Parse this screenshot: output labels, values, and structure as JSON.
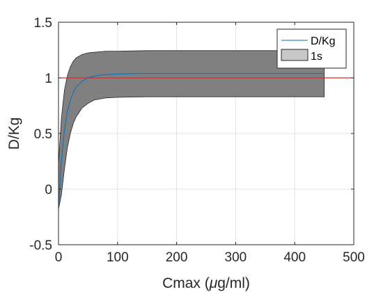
{
  "chart_data": {
    "type": "area",
    "xlabel_prefix": "Cmax (",
    "xlabel_mu": "μ",
    "xlabel_suffix": "g/ml)",
    "ylabel": "D/Kg",
    "xlim": [
      0,
      500
    ],
    "ylim": [
      -0.5,
      1.5
    ],
    "xticks": [
      0,
      100,
      200,
      300,
      400,
      500
    ],
    "yticks": [
      -0.5,
      0,
      0.5,
      1,
      1.5
    ],
    "xtick_labels": [
      "0",
      "100",
      "200",
      "300",
      "400",
      "500"
    ],
    "ytick_labels": [
      "-0.5",
      "0",
      "0.5",
      "1",
      "1.5"
    ],
    "grid": true,
    "legend_location": "top-right",
    "reference_line": {
      "y": 1,
      "color": "#e8262a"
    },
    "series": [
      {
        "name": "D/Kg",
        "kind": "line",
        "color": "#0072bd",
        "x": [
          0,
          5,
          10,
          15,
          20,
          25,
          30,
          40,
          50,
          60,
          70,
          80,
          100,
          150,
          200,
          300,
          400,
          450
        ],
        "y": [
          -0.18,
          0.26,
          0.53,
          0.7,
          0.8,
          0.87,
          0.92,
          0.97,
          1.0,
          1.015,
          1.025,
          1.03,
          1.035,
          1.04,
          1.04,
          1.04,
          1.04,
          1.04
        ]
      },
      {
        "name": "1s",
        "kind": "band",
        "color": "#808080",
        "x": [
          0,
          5,
          10,
          15,
          20,
          25,
          30,
          40,
          50,
          60,
          70,
          80,
          100,
          150,
          200,
          300,
          400,
          450
        ],
        "upper": [
          0.23,
          0.64,
          0.89,
          1.02,
          1.1,
          1.15,
          1.18,
          1.21,
          1.225,
          1.23,
          1.235,
          1.24,
          1.24,
          1.245,
          1.245,
          1.245,
          1.245,
          1.245
        ],
        "lower": [
          -0.18,
          -0.05,
          0.18,
          0.37,
          0.5,
          0.59,
          0.65,
          0.73,
          0.77,
          0.8,
          0.81,
          0.82,
          0.825,
          0.83,
          0.83,
          0.83,
          0.83,
          0.83
        ]
      }
    ]
  }
}
